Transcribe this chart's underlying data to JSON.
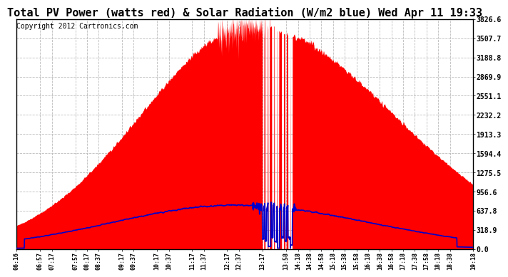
{
  "title": "Total PV Power (watts red) & Solar Radiation (W/m2 blue) Wed Apr 11 19:33",
  "copyright": "Copyright 2012 Cartronics.com",
  "ymin": 0.0,
  "ymax": 3826.6,
  "yticks": [
    0.0,
    318.9,
    637.8,
    956.6,
    1275.5,
    1594.4,
    1913.3,
    2232.2,
    2551.1,
    2869.9,
    3188.8,
    3507.7,
    3826.6
  ],
  "background_color": "#ffffff",
  "fill_color": "#ff0000",
  "line_color": "#0000cc",
  "grid_color": "#bbbbbb",
  "title_fontsize": 11,
  "copyright_fontsize": 7,
  "xtick_labels": [
    "06:16",
    "06:57",
    "07:17",
    "07:57",
    "08:17",
    "08:37",
    "09:17",
    "09:37",
    "10:17",
    "10:37",
    "11:17",
    "11:37",
    "12:17",
    "12:37",
    "13:17",
    "13:58",
    "14:18",
    "14:38",
    "14:58",
    "15:18",
    "15:38",
    "15:58",
    "16:18",
    "16:38",
    "16:58",
    "17:18",
    "17:38",
    "17:58",
    "18:18",
    "18:38",
    "19:18"
  ]
}
